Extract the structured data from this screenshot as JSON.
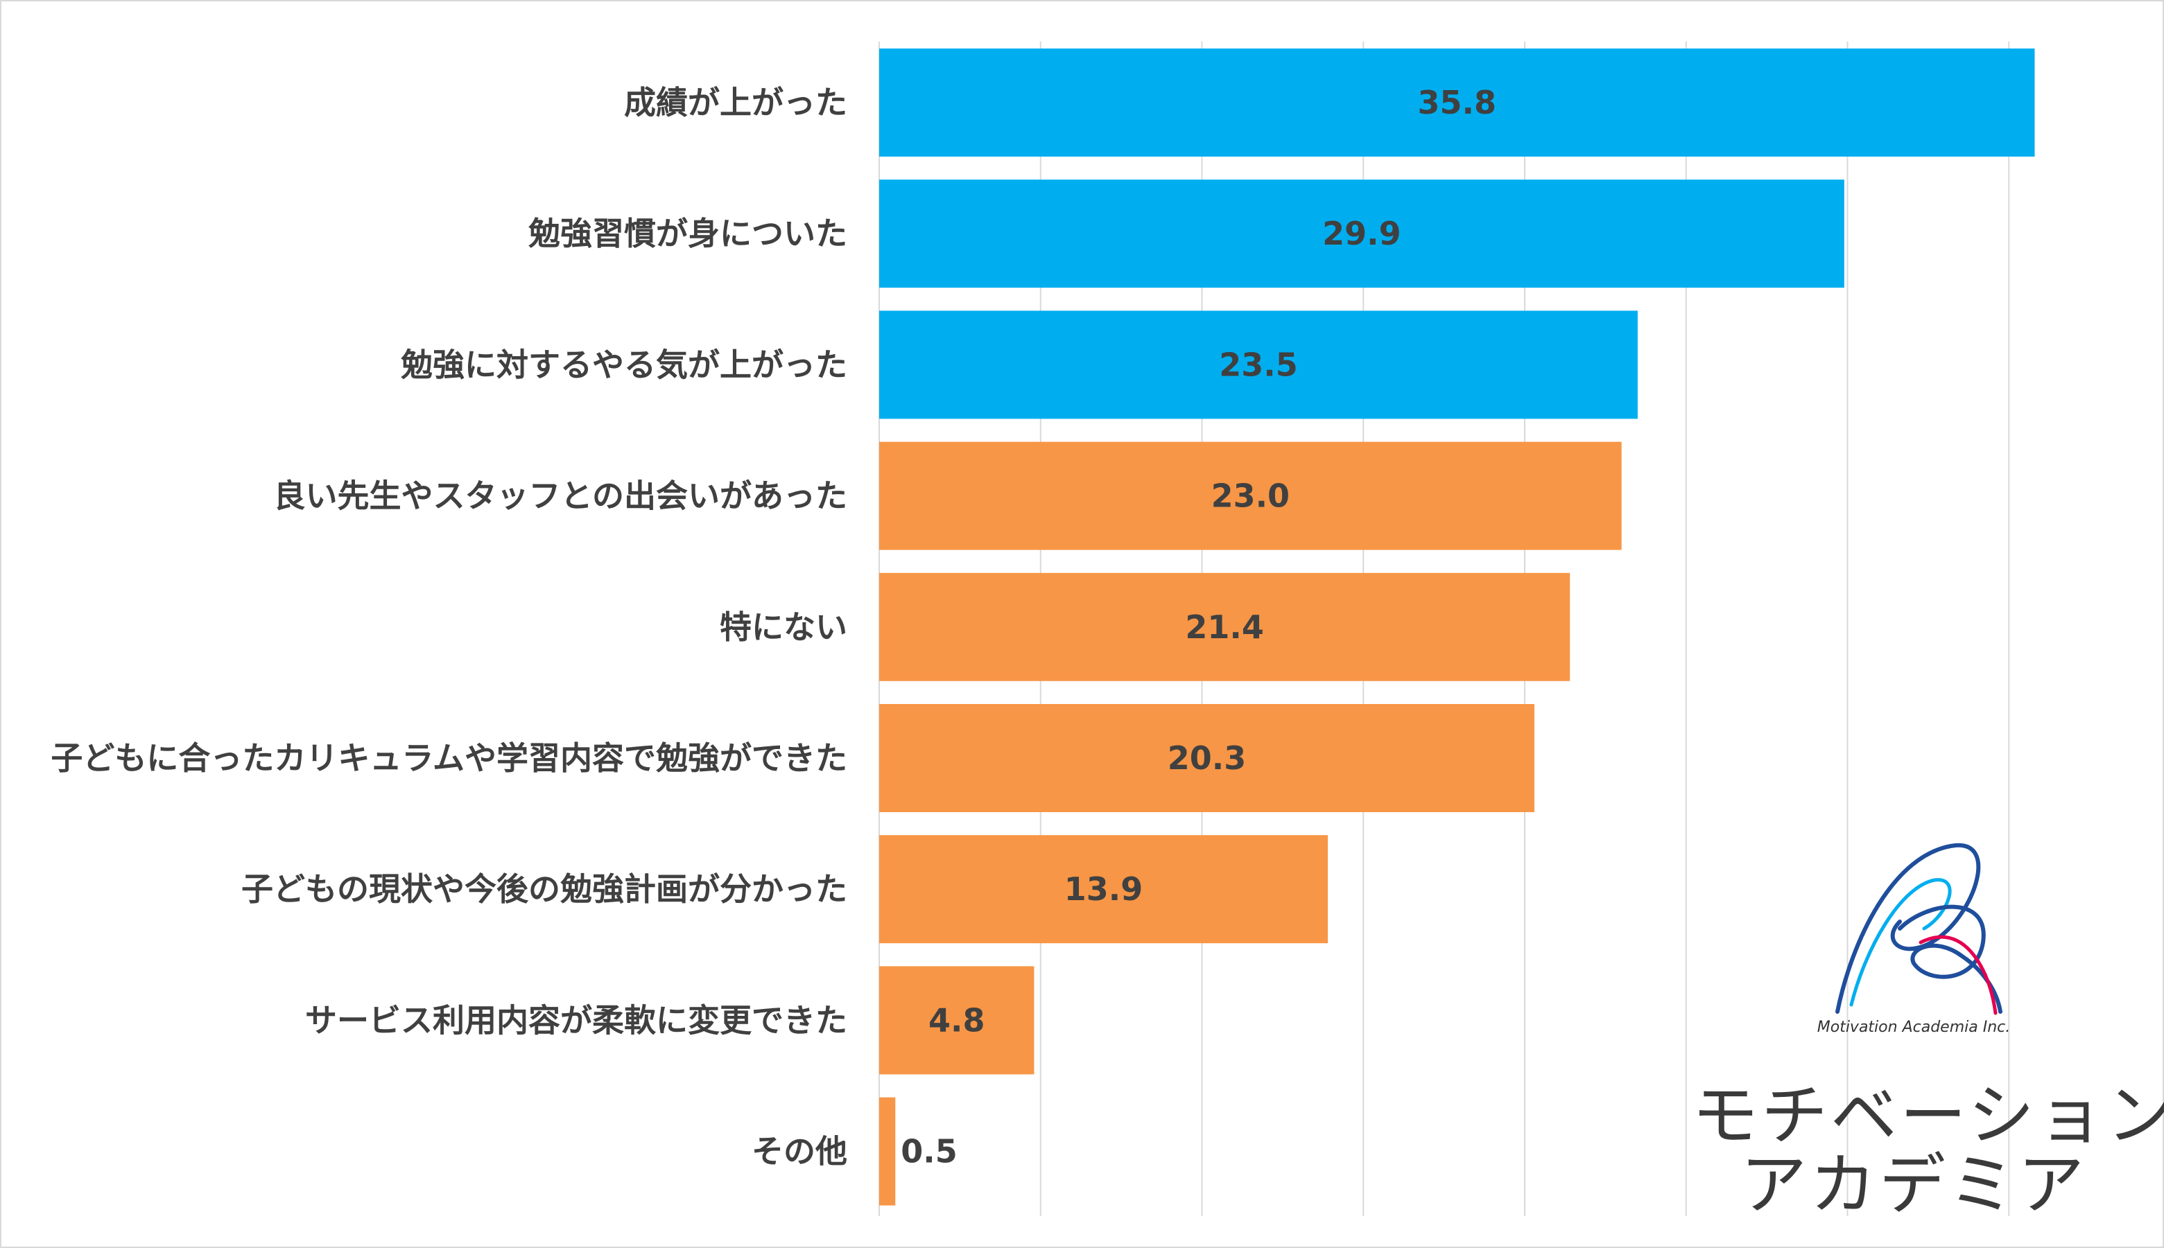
{
  "chart_data": {
    "type": "bar",
    "orientation": "horizontal",
    "title": "",
    "xlabel": "",
    "ylabel": "",
    "xlim": [
      0,
      40
    ],
    "grid": true,
    "categories": [
      "成績が上がった",
      "勉強習慣が身についた",
      "勉強に対するやる気が上がった",
      "良い先生やスタッフとの出会いがあった",
      "特にない",
      "子どもに合ったカリキュラムや学習内容で勉強ができた",
      "子どもの現状や今後の勉強計画が分かった",
      "サービス利用内容が柔軟に変更できた",
      "その他"
    ],
    "values": [
      35.8,
      29.9,
      23.5,
      23.0,
      21.4,
      20.3,
      13.9,
      4.8,
      0.5
    ],
    "value_labels": [
      "35.8",
      "29.9",
      "23.5",
      "23.0",
      "21.4",
      "20.3",
      "13.9",
      "4.8",
      "0.5"
    ],
    "bar_colors": [
      "#00aeef",
      "#00aeef",
      "#00aeef",
      "#f79646",
      "#f79646",
      "#f79646",
      "#f79646",
      "#f79646",
      "#f79646"
    ]
  },
  "logo": {
    "company": "Motivation Academia Inc.",
    "name_line1": "モチベーション",
    "name_line2": "アカデミア",
    "mark_colors": [
      "#1f4e9c",
      "#00aeef",
      "#e4004f"
    ]
  }
}
